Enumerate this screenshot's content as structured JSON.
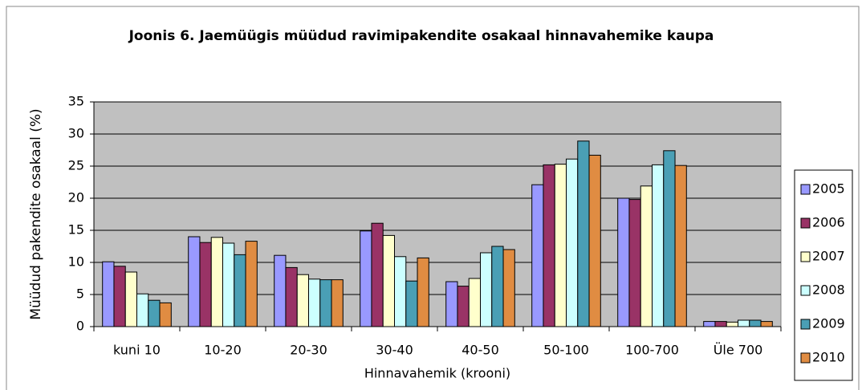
{
  "chart_data": {
    "type": "bar",
    "title": "Joonis 6. Jaemüügis müüdud ravimipakendite osakaal hinnavahemike kaupa",
    "x_label": "Hinnavahemik (krooni)",
    "y_label": "Müüdud pakendite osakaal (%)",
    "categories": [
      "kuni 10",
      "10-20",
      "20-30",
      "30-40",
      "40-50",
      "50-100",
      "100-700",
      "Üle 700"
    ],
    "series": [
      {
        "name": "2005",
        "color": "#9999ff",
        "values": [
          10.1,
          14.0,
          11.1,
          14.9,
          7.0,
          22.1,
          20.0,
          0.8
        ]
      },
      {
        "name": "2006",
        "color": "#993366",
        "values": [
          9.4,
          13.1,
          9.2,
          16.1,
          6.3,
          25.2,
          19.8,
          0.8
        ]
      },
      {
        "name": "2007",
        "color": "#ffffcc",
        "values": [
          8.5,
          13.9,
          8.1,
          14.2,
          7.5,
          25.3,
          21.9,
          0.7
        ]
      },
      {
        "name": "2008",
        "color": "#ccffff",
        "values": [
          5.1,
          13.0,
          7.4,
          10.9,
          11.5,
          26.1,
          25.2,
          1.0
        ]
      },
      {
        "name": "2009",
        "color": "#4a9fb5",
        "values": [
          4.1,
          11.2,
          7.3,
          7.1,
          12.5,
          28.9,
          27.4,
          1.0
        ]
      },
      {
        "name": "2010",
        "color": "#e08c42",
        "values": [
          3.7,
          13.3,
          7.3,
          10.7,
          12.0,
          26.7,
          25.1,
          0.8
        ]
      }
    ],
    "ylim": [
      0,
      35
    ],
    "yticks": [
      0,
      5,
      10,
      15,
      20,
      25,
      30,
      35
    ],
    "grid": true,
    "legend": "right"
  }
}
